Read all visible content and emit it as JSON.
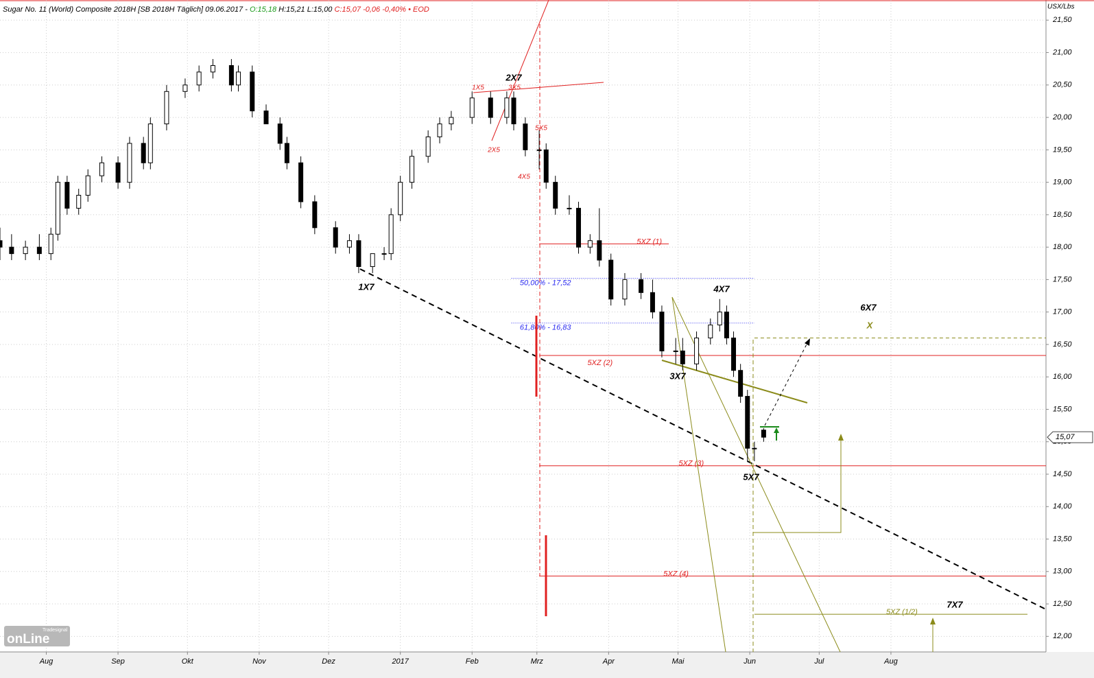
{
  "chart_data": {
    "type": "candlestick",
    "header": {
      "title": "Sugar No. 11 (World) Composite 2018H [SB 2018H Täglich] 09.06.2017 -",
      "open": "O:15,18",
      "high_low": "H:15,21 L:15,00",
      "close": "C:15,07 -0,06 -0,40% • EOD"
    },
    "unit": "USX/Lbs",
    "last_label": "15,07",
    "logo": {
      "small": "Tradesignal",
      "big": "onLine"
    },
    "xlim": [
      -20,
      432
    ],
    "ylim": [
      11.76,
      21.81
    ],
    "xticks": [
      {
        "value": 0,
        "label": "Aug"
      },
      {
        "value": 31,
        "label": "Sep"
      },
      {
        "value": 61,
        "label": "Okt"
      },
      {
        "value": 92,
        "label": "Nov"
      },
      {
        "value": 122,
        "label": "Dez"
      },
      {
        "value": 153,
        "label": "2017"
      },
      {
        "value": 184,
        "label": "Feb"
      },
      {
        "value": 212,
        "label": "Mrz"
      },
      {
        "value": 243,
        "label": "Apr"
      },
      {
        "value": 273,
        "label": "Mai"
      },
      {
        "value": 304,
        "label": "Jun"
      },
      {
        "value": 334,
        "label": "Jul"
      },
      {
        "value": 365,
        "label": "Aug"
      }
    ],
    "yticks": [
      {
        "value": 12,
        "label": "12,00"
      },
      {
        "value": 12.5,
        "label": "12,50"
      },
      {
        "value": 13,
        "label": "13,00"
      },
      {
        "value": 13.5,
        "label": "13,50"
      },
      {
        "value": 14,
        "label": "14,00"
      },
      {
        "value": 14.5,
        "label": "14,50"
      },
      {
        "value": 15,
        "label": "15,00"
      },
      {
        "value": 15.5,
        "label": "15,50"
      },
      {
        "value": 16,
        "label": "16,00"
      },
      {
        "value": 16.5,
        "label": "16,50"
      },
      {
        "value": 17,
        "label": "17,00"
      },
      {
        "value": 17.5,
        "label": "17,50"
      },
      {
        "value": 18,
        "label": "18,00"
      },
      {
        "value": 18.5,
        "label": "18,50"
      },
      {
        "value": 19,
        "label": "19,00"
      },
      {
        "value": 19.5,
        "label": "19,50"
      },
      {
        "value": 20,
        "label": "20,00"
      },
      {
        "value": 20.5,
        "label": "20,50"
      },
      {
        "value": 21,
        "label": "21,00"
      },
      {
        "value": 21.5,
        "label": "21,50"
      }
    ],
    "grid": true,
    "x": [
      -20,
      -15,
      -9,
      -3,
      2,
      5,
      9,
      14,
      18,
      24,
      31,
      36,
      42,
      45,
      52,
      60,
      66,
      72,
      80,
      83,
      89,
      95,
      101,
      104,
      110,
      116,
      125,
      131,
      135,
      141,
      146,
      149,
      153,
      158,
      165,
      170,
      175,
      184,
      192,
      199,
      202,
      207,
      213,
      216,
      220,
      226,
      230,
      235,
      239,
      244,
      250,
      257,
      262,
      266,
      272,
      275,
      281,
      287,
      291,
      294,
      297,
      300,
      303,
      306,
      310
    ],
    "open": [
      18.1,
      18.0,
      17.9,
      18.0,
      17.9,
      18.2,
      19.0,
      18.6,
      18.8,
      19.1,
      19.3,
      19.0,
      19.6,
      19.3,
      19.9,
      20.4,
      20.5,
      20.7,
      20.8,
      20.5,
      20.7,
      20.1,
      19.9,
      19.6,
      19.3,
      18.7,
      18.3,
      18.0,
      18.1,
      17.7,
      17.9,
      17.9,
      18.5,
      19.0,
      19.4,
      19.7,
      19.9,
      20.0,
      20.3,
      20.0,
      20.3,
      19.9,
      19.5,
      19.5,
      19.0,
      18.6,
      18.6,
      18.0,
      18.1,
      17.8,
      17.2,
      17.5,
      17.3,
      17.0,
      16.4,
      16.4,
      16.2,
      16.6,
      16.8,
      17.0,
      16.6,
      16.1,
      15.7,
      14.9,
      15.18
    ],
    "high": [
      18.3,
      18.2,
      18.1,
      18.2,
      18.3,
      19.1,
      19.1,
      18.9,
      19.2,
      19.4,
      19.4,
      19.7,
      19.7,
      20.0,
      20.5,
      20.6,
      20.8,
      20.9,
      20.9,
      20.8,
      20.8,
      20.2,
      20.0,
      19.7,
      19.4,
      18.8,
      18.4,
      18.2,
      18.2,
      17.9,
      18.0,
      18.6,
      19.1,
      19.5,
      19.8,
      20.0,
      20.1,
      20.4,
      20.4,
      20.4,
      20.4,
      20.0,
      19.8,
      19.6,
      19.1,
      18.8,
      18.7,
      18.2,
      18.6,
      17.9,
      17.6,
      17.6,
      17.5,
      17.1,
      16.6,
      16.6,
      16.7,
      16.9,
      17.2,
      17.1,
      16.7,
      16.2,
      15.8,
      15.0,
      15.21
    ],
    "low": [
      17.8,
      17.8,
      17.8,
      17.8,
      17.8,
      18.1,
      18.5,
      18.5,
      18.7,
      19.0,
      18.9,
      18.9,
      19.2,
      19.2,
      19.8,
      20.3,
      20.4,
      20.6,
      20.4,
      20.4,
      20.0,
      19.9,
      19.5,
      19.2,
      18.6,
      18.2,
      17.9,
      17.9,
      17.6,
      17.6,
      17.8,
      17.8,
      18.4,
      18.9,
      19.3,
      19.6,
      19.8,
      19.9,
      19.9,
      19.9,
      19.8,
      19.4,
      19.2,
      18.9,
      18.5,
      18.5,
      17.9,
      17.9,
      17.7,
      17.1,
      17.1,
      17.2,
      16.9,
      16.3,
      16.2,
      16.1,
      16.1,
      16.5,
      16.7,
      16.5,
      16.0,
      15.6,
      14.7,
      14.7,
      15.0
    ],
    "close": [
      18.0,
      17.9,
      18.0,
      17.9,
      18.2,
      19.0,
      18.6,
      18.8,
      19.1,
      19.3,
      19.0,
      19.6,
      19.3,
      19.9,
      20.4,
      20.5,
      20.7,
      20.8,
      20.5,
      20.7,
      20.1,
      19.9,
      19.6,
      19.3,
      18.7,
      18.3,
      18.0,
      18.1,
      17.7,
      17.9,
      17.9,
      18.5,
      19.0,
      19.4,
      19.7,
      19.9,
      20.0,
      20.3,
      20.0,
      20.3,
      19.9,
      19.5,
      19.5,
      19.0,
      18.6,
      18.6,
      18.0,
      18.1,
      17.8,
      17.2,
      17.5,
      17.3,
      17.0,
      16.4,
      16.4,
      16.2,
      16.6,
      16.8,
      17.0,
      16.6,
      16.1,
      15.7,
      14.9,
      14.9,
      15.07
    ],
    "levels": [
      {
        "label": "5XZ (1)",
        "value": 18.05,
        "from": 213,
        "to": 269,
        "color": "#e02020"
      },
      {
        "label": "50,00% - 17,52",
        "value": 17.52,
        "from": 201,
        "to": 306,
        "color": "#2a2af0"
      },
      {
        "label": "61,80% - 16,83",
        "value": 16.83,
        "from": 201,
        "to": 306,
        "color": "#2a2af0"
      },
      {
        "label": "5XZ (2)",
        "value": 16.33,
        "from": 213,
        "to": 432,
        "color": "#e02020"
      },
      {
        "label": "5XZ (3)",
        "value": 14.63,
        "from": 213,
        "to": 432,
        "color": "#e02020"
      },
      {
        "label": "5XZ (4)",
        "value": 12.93,
        "from": 213,
        "to": 432,
        "color": "#e02020"
      },
      {
        "label": "5XZ (1/2)",
        "value": 12.34,
        "from": 306,
        "to": 424,
        "color": "#8b8b1a"
      },
      {
        "value": 16.6,
        "from": 306,
        "to": 432,
        "color": "#8b8b1a"
      }
    ],
    "annotations": [
      "1X7",
      "2X7",
      "3X7",
      "4X7",
      "5X7",
      "6X7",
      "X",
      "7X7",
      "1X5",
      "3X5",
      "2X5",
      "5X5",
      "4X5"
    ]
  }
}
